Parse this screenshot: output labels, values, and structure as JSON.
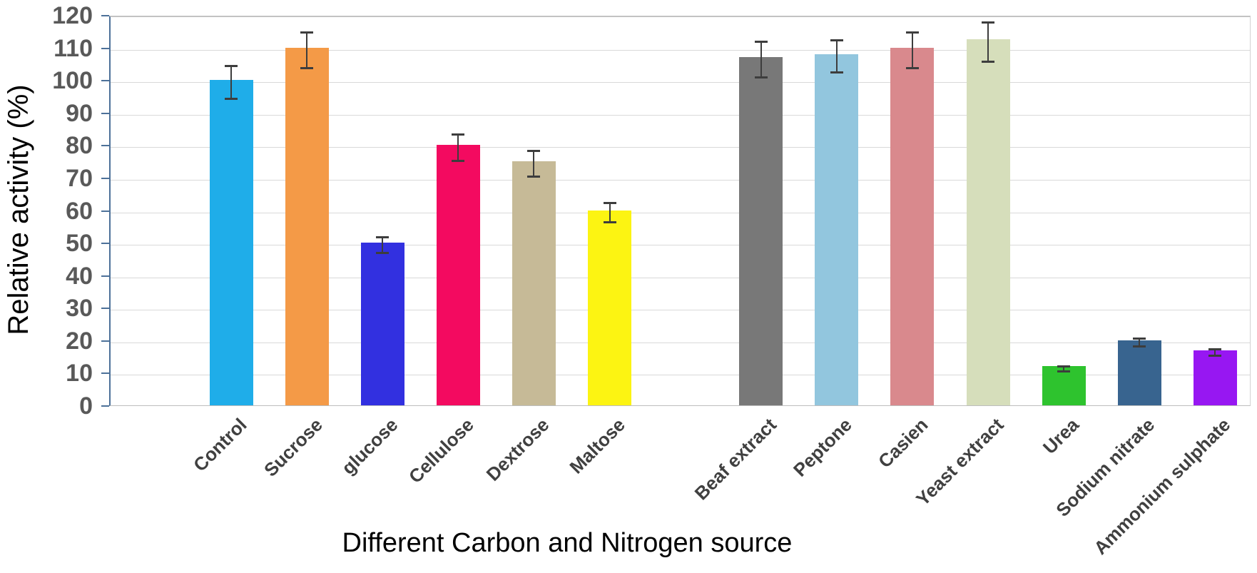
{
  "chart_data": {
    "type": "bar",
    "title": "",
    "xlabel": "Different Carbon and Nitrogen source",
    "ylabel": "Relative activity (%)",
    "ylim": [
      0,
      120
    ],
    "ytick_step": 10,
    "yticks": [
      0,
      10,
      20,
      30,
      40,
      50,
      60,
      70,
      80,
      90,
      100,
      110,
      120
    ],
    "grid": "horizontal-light-gray",
    "legend": "none",
    "categories": [
      "Control",
      "Sucrose",
      "glucose",
      "Cellulose",
      "Dextrose",
      "Maltose",
      "Beaf extract",
      "Peptone",
      "Casien",
      "Yeast extract",
      "Urea",
      "Sodium nitrate",
      "Ammonium sulphate"
    ],
    "values": [
      100,
      110,
      50,
      80,
      75,
      60,
      107,
      108,
      110,
      112.5,
      12,
      20,
      17
    ],
    "bars": [
      {
        "label": "Control",
        "value": 100,
        "error": 5,
        "color": "#1fade9",
        "slot": 0
      },
      {
        "label": "Sucrose",
        "value": 110,
        "error": 5.5,
        "color": "#f49a47",
        "slot": 1
      },
      {
        "label": "glucose",
        "value": 50,
        "error": 2.5,
        "color": "#3230e0",
        "slot": 2
      },
      {
        "label": "Cellulose",
        "value": 80,
        "error": 4,
        "color": "#f30a60",
        "slot": 3
      },
      {
        "label": "Dextrose",
        "value": 75,
        "error": 4,
        "color": "#c6ba97",
        "slot": 4
      },
      {
        "label": "Maltose",
        "value": 60,
        "error": 3,
        "color": "#fcf412",
        "slot": 5
      },
      {
        "label": "Beaf extract",
        "value": 107,
        "error": 5.5,
        "color": "#787878",
        "slot": 7
      },
      {
        "label": "Peptone",
        "value": 108,
        "error": 5,
        "color": "#92c6de",
        "slot": 8
      },
      {
        "label": "Casien",
        "value": 110,
        "error": 5.5,
        "color": "#d9898d",
        "slot": 9
      },
      {
        "label": "Yeast extract",
        "value": 112.5,
        "error": 6,
        "color": "#d6debb",
        "slot": 10
      },
      {
        "label": "Urea",
        "value": 12,
        "error": 0.8,
        "color": "#2ec32e",
        "slot": 11
      },
      {
        "label": "Sodium nitrate",
        "value": 20,
        "error": 1.2,
        "color": "#38648f",
        "slot": 12
      },
      {
        "label": "Ammonium sulphate",
        "value": 17,
        "error": 1,
        "color": "#9717f2",
        "slot": 13
      }
    ]
  },
  "style": {
    "axis_line_color": "#4d7199",
    "gridline_color": "#d9d9d9",
    "error_bar_color": "#3d3d3d",
    "y_tick_label_color": "#595959",
    "category_label_color": "#404040",
    "title_color": "#000000",
    "background": "#ffffff"
  }
}
